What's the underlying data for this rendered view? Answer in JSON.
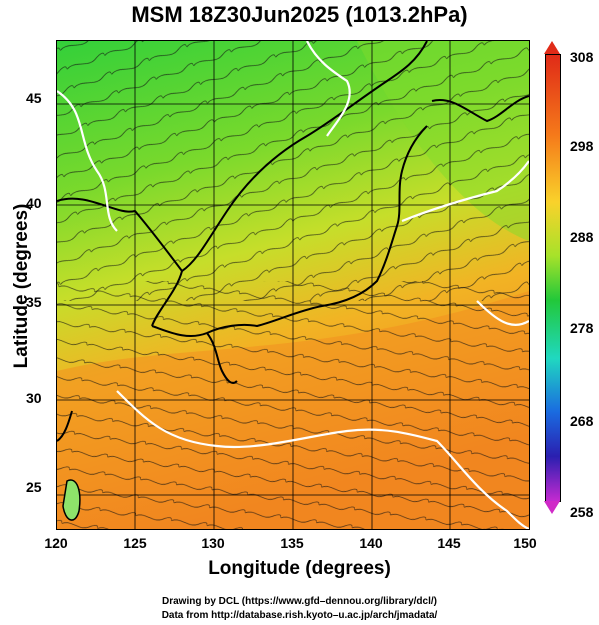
{
  "title": "MSM 18Z30Jun2025 (1013.2hPa)",
  "axes": {
    "xlabel": "Longitude (degrees)",
    "ylabel": "Latitude  (degrees)",
    "xticks": [
      "120",
      "125",
      "130",
      "135",
      "140",
      "145",
      "150"
    ],
    "yticks": [
      "45",
      "40",
      "35",
      "30",
      "25"
    ]
  },
  "colorbar": {
    "ticks": [
      "308",
      "298",
      "288",
      "278",
      "268",
      "258"
    ],
    "colors": {
      "high": "#e02b18",
      "warm": "#f57a1a",
      "mid": "#f9d22b",
      "cool": "#22c83a",
      "cold": "#1a6be0",
      "low": "#c42ad0"
    }
  },
  "credits": {
    "line1": "Drawing by DCL (https://www.gfd–dennou.org/library/dcl/)",
    "line2": "Data from http://database.rish.kyoto–u.ac.jp/arch/jmadata/"
  }
}
